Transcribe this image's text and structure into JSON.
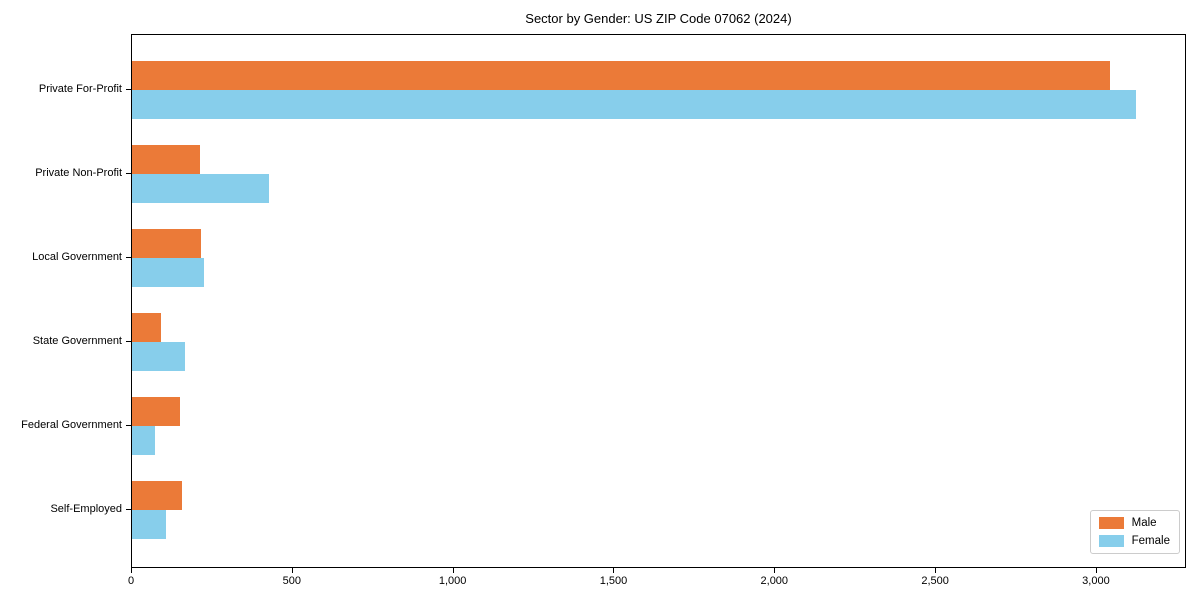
{
  "title": "Sector by Gender: US ZIP Code 07062 (2024)",
  "chart_data": {
    "type": "bar",
    "orientation": "horizontal",
    "title": "Sector by Gender: US ZIP Code 07062 (2024)",
    "xlabel": "",
    "ylabel": "",
    "categories": [
      "Private For-Profit",
      "Private Non-Profit",
      "Local Government",
      "State Government",
      "Federal Government",
      "Self-Employed"
    ],
    "series": [
      {
        "name": "Male",
        "color": "#EB7A38",
        "values": [
          3040,
          210,
          215,
          90,
          148,
          155
        ]
      },
      {
        "name": "Female",
        "color": "#87CEEB",
        "values": [
          3120,
          425,
          223,
          165,
          70,
          105
        ]
      }
    ],
    "xlim": [
      0,
      3280
    ],
    "x_ticks": [
      0,
      500,
      1000,
      1500,
      2000,
      2500,
      3000
    ],
    "x_tick_labels": [
      "0",
      "500",
      "1,000",
      "1,500",
      "2,000",
      "2,500",
      "3,000"
    ],
    "grid": false,
    "legend_position": "lower right",
    "axis_color": "#000000",
    "background_color": "#ffffff"
  },
  "legend": {
    "items": [
      {
        "label": "Male",
        "color": "#EB7A38"
      },
      {
        "label": "Female",
        "color": "#87CEEB"
      }
    ]
  }
}
